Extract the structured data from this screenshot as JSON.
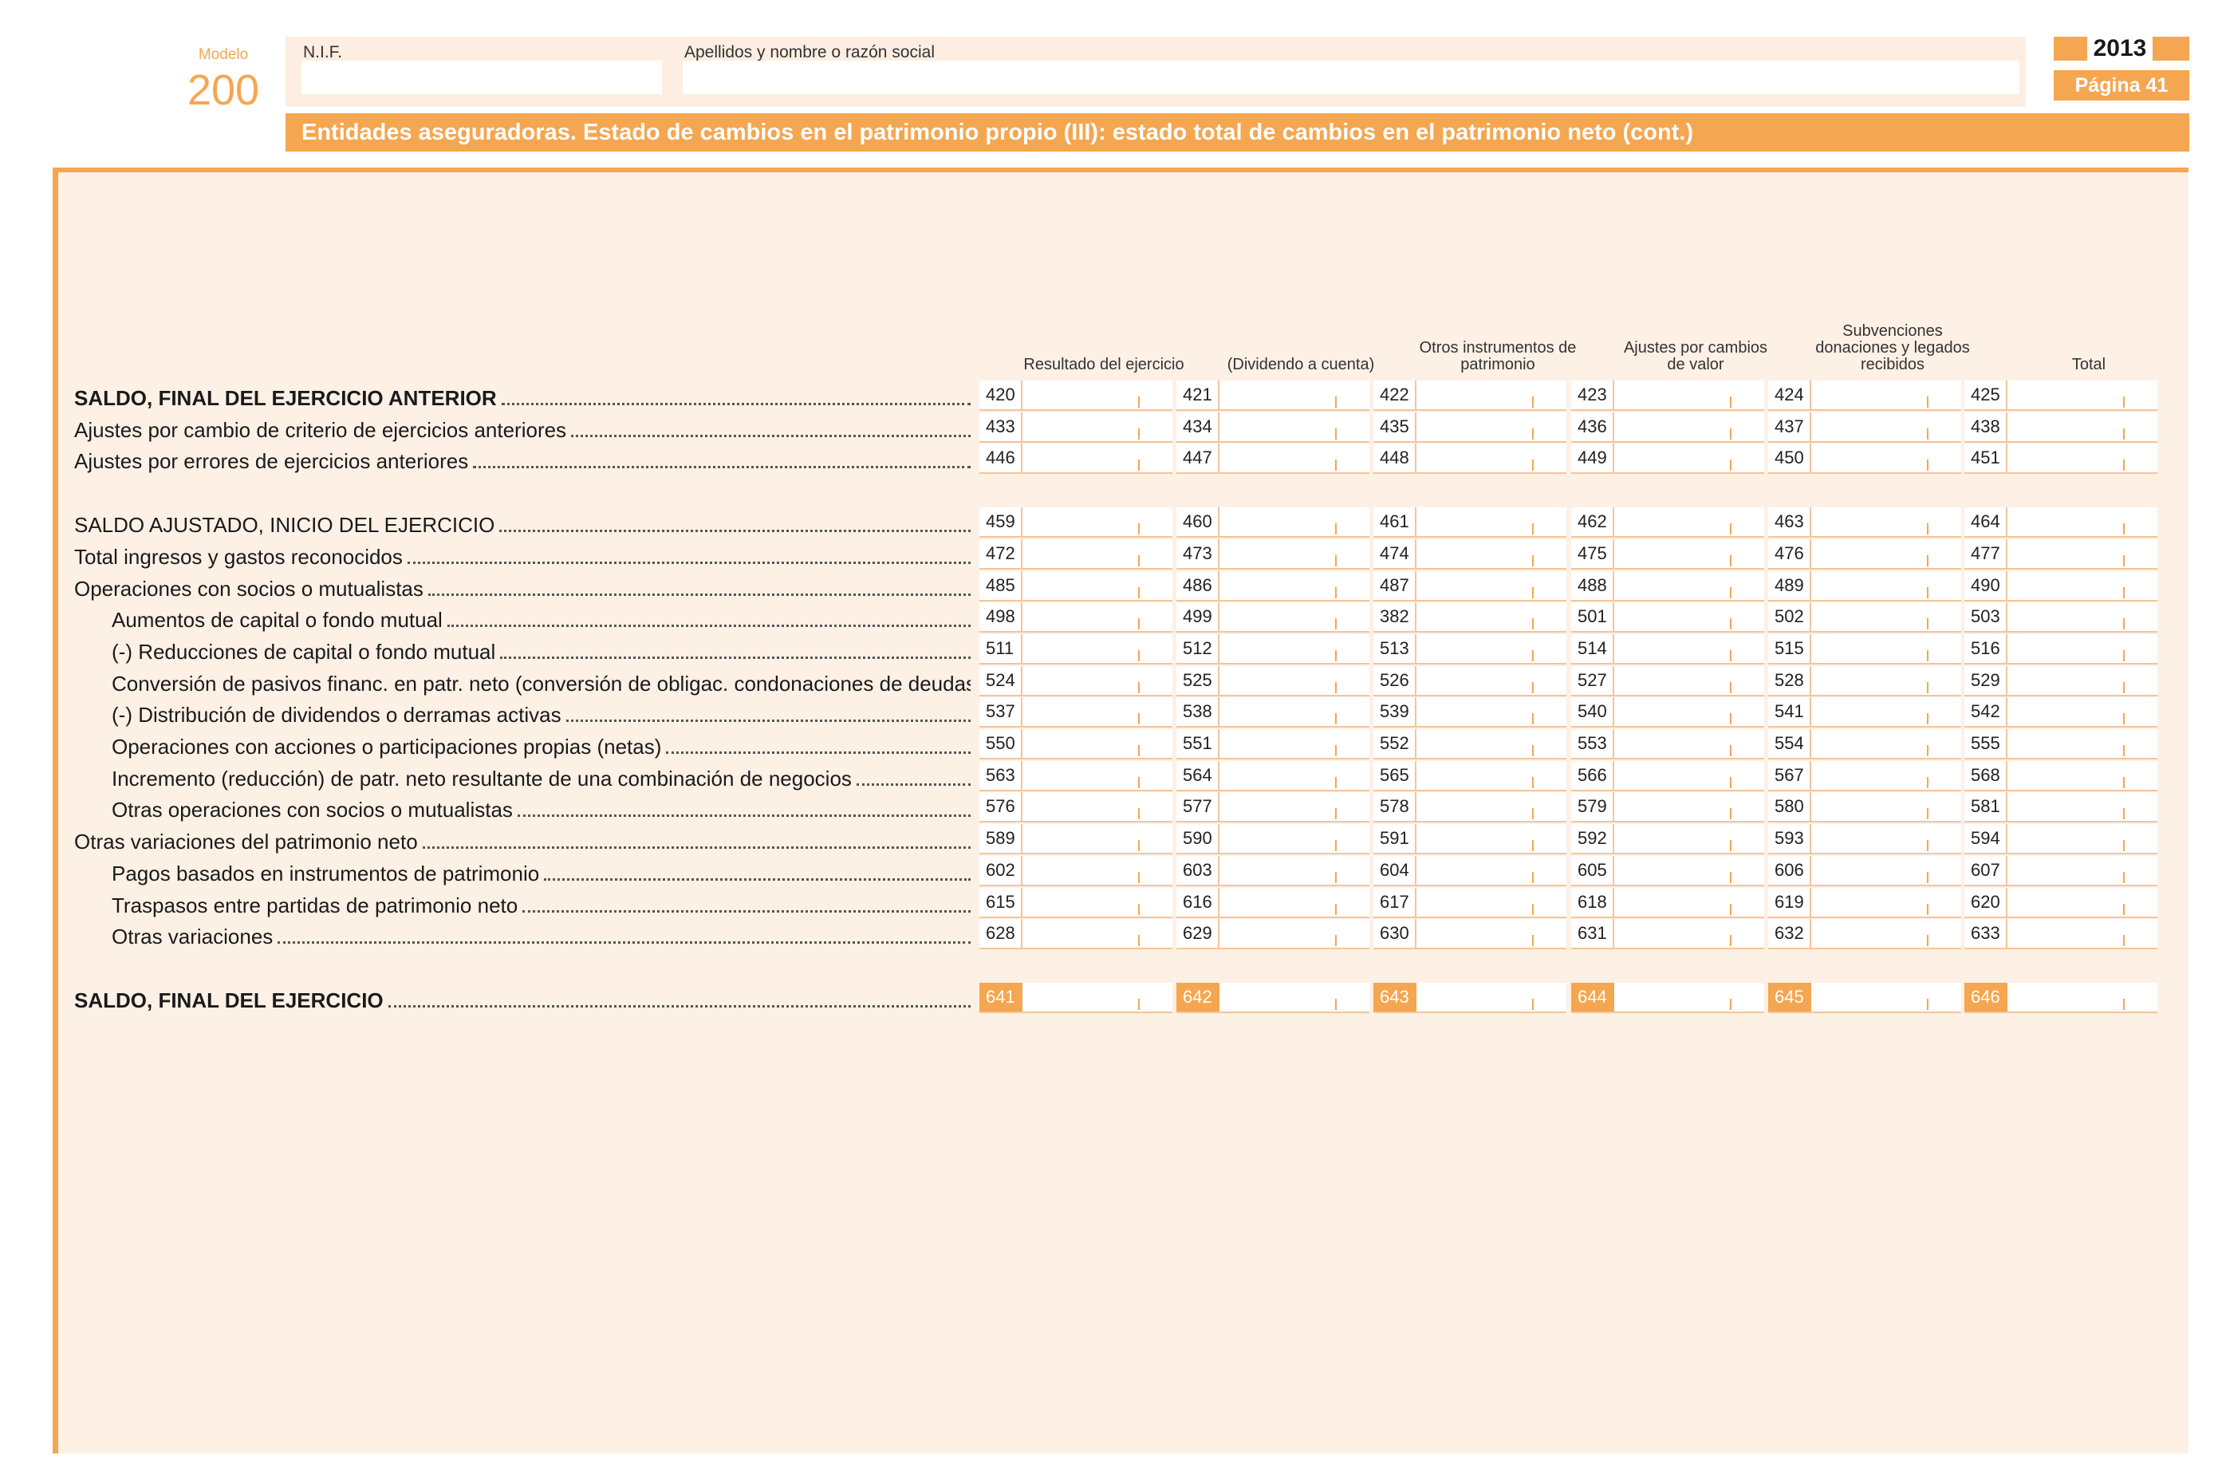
{
  "header": {
    "modelo_label": "Modelo",
    "modelo_number": "200",
    "nif_label": "N.I.F.",
    "nif_value": "",
    "name_label": "Apellidos y nombre o razón social",
    "name_value": "",
    "year": "2013",
    "page": "Página 41",
    "title": "Entidades aseguradoras. Estado de cambios en el patrimonio propio (III): estado total de cambios en el patrimonio neto (cont.)"
  },
  "columns": [
    {
      "label": "Resultado del ejercicio"
    },
    {
      "label": "(Dividendo a cuenta)"
    },
    {
      "label": "Otros instrumentos de\npatrimonio"
    },
    {
      "label": "Ajustes por cambios\nde valor"
    },
    {
      "label": "Subvenciones\ndonaciones y legados\nrecibidos"
    },
    {
      "label": "Total"
    }
  ],
  "rows": [
    {
      "label": "SALDO, FINAL DEL EJERCICIO ANTERIOR",
      "bold": true,
      "indent": 0,
      "codes": [
        "420",
        "421",
        "422",
        "423",
        "424",
        "425"
      ]
    },
    {
      "label": "Ajustes por cambio de criterio de ejercicios anteriores",
      "indent": 0,
      "codes": [
        "433",
        "434",
        "435",
        "436",
        "437",
        "438"
      ]
    },
    {
      "label": "Ajustes por errores de ejercicios anteriores",
      "indent": 0,
      "codes": [
        "446",
        "447",
        "448",
        "449",
        "450",
        "451"
      ]
    },
    {
      "label": "SALDO AJUSTADO, INICIO DEL EJERCICIO",
      "indent": 0,
      "gap_before": true,
      "codes": [
        "459",
        "460",
        "461",
        "462",
        "463",
        "464"
      ]
    },
    {
      "label": "Total ingresos y gastos reconocidos",
      "indent": 0,
      "codes": [
        "472",
        "473",
        "474",
        "475",
        "476",
        "477"
      ]
    },
    {
      "label": "Operaciones con socios o mutualistas",
      "indent": 0,
      "codes": [
        "485",
        "486",
        "487",
        "488",
        "489",
        "490"
      ]
    },
    {
      "label": "Aumentos de capital o fondo mutual",
      "indent": 1,
      "codes": [
        "498",
        "499",
        "382",
        "501",
        "502",
        "503"
      ]
    },
    {
      "label": "(-) Reducciones de capital o fondo mutual",
      "indent": 1,
      "codes": [
        "511",
        "512",
        "513",
        "514",
        "515",
        "516"
      ]
    },
    {
      "label": "Conversión de pasivos financ. en patr. neto (conversión de obligac. condonaciones de deudas)",
      "indent": 1,
      "codes": [
        "524",
        "525",
        "526",
        "527",
        "528",
        "529"
      ]
    },
    {
      "label": "(-) Distribución de dividendos o derramas activas",
      "indent": 1,
      "codes": [
        "537",
        "538",
        "539",
        "540",
        "541",
        "542"
      ]
    },
    {
      "label": "Operaciones con acciones o participaciones propias (netas)",
      "indent": 1,
      "codes": [
        "550",
        "551",
        "552",
        "553",
        "554",
        "555"
      ]
    },
    {
      "label": "Incremento (reducción) de patr. neto resultante de una combinación de negocios",
      "indent": 1,
      "codes": [
        "563",
        "564",
        "565",
        "566",
        "567",
        "568"
      ]
    },
    {
      "label": "Otras operaciones con socios o mutualistas",
      "indent": 1,
      "codes": [
        "576",
        "577",
        "578",
        "579",
        "580",
        "581"
      ]
    },
    {
      "label": "Otras variaciones del patrimonio neto",
      "indent": 0,
      "codes": [
        "589",
        "590",
        "591",
        "592",
        "593",
        "594"
      ]
    },
    {
      "label": "Pagos basados en instrumentos de patrimonio",
      "indent": 1,
      "codes": [
        "602",
        "603",
        "604",
        "605",
        "606",
        "607"
      ]
    },
    {
      "label": "Traspasos entre partidas de patrimonio neto",
      "indent": 1,
      "codes": [
        "615",
        "616",
        "617",
        "618",
        "619",
        "620"
      ]
    },
    {
      "label": "Otras variaciones",
      "indent": 1,
      "codes": [
        "628",
        "629",
        "630",
        "631",
        "632",
        "633"
      ]
    },
    {
      "label": "SALDO, FINAL DEL EJERCICIO",
      "bold": true,
      "indent": 0,
      "gap_before": true,
      "final": true,
      "codes": [
        "641",
        "642",
        "643",
        "644",
        "645",
        "646"
      ]
    }
  ]
}
